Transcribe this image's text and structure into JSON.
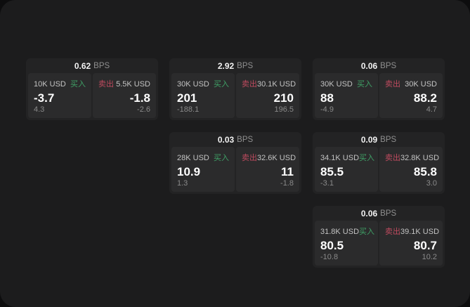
{
  "labels": {
    "bps_unit": "BPS",
    "buy": "买入",
    "sell": "卖出"
  },
  "colors": {
    "buy_green": "#3fa066",
    "sell_red": "#bf4b5f",
    "panel_bg": "#1c1c1d",
    "card_bg": "#232324",
    "tile_bg": "#2b2b2c"
  },
  "cards": [
    {
      "bps": "0.62",
      "grid": {
        "col": 1,
        "row": 1
      },
      "buy": {
        "amount": "10K USD",
        "price": "-3.7",
        "sub": "4.3"
      },
      "sell": {
        "amount": "5.5K USD",
        "price": "-1.8",
        "sub": "-2.6"
      }
    },
    {
      "bps": "2.92",
      "grid": {
        "col": 2,
        "row": 1
      },
      "buy": {
        "amount": "30K USD",
        "price": "201",
        "sub": "-188.1"
      },
      "sell": {
        "amount": "30.1K USD",
        "price": "210",
        "sub": "196.5"
      }
    },
    {
      "bps": "0.06",
      "grid": {
        "col": 3,
        "row": 1
      },
      "buy": {
        "amount": "30K USD",
        "price": "88",
        "sub": "-4.9"
      },
      "sell": {
        "amount": "30K USD",
        "price": "88.2",
        "sub": "4.7"
      }
    },
    {
      "bps": "0.03",
      "grid": {
        "col": 2,
        "row": 2
      },
      "buy": {
        "amount": "28K USD",
        "price": "10.9",
        "sub": "1.3"
      },
      "sell": {
        "amount": "32.6K USD",
        "price": "11",
        "sub": "-1.8"
      }
    },
    {
      "bps": "0.09",
      "grid": {
        "col": 3,
        "row": 2
      },
      "buy": {
        "amount": "34.1K USD",
        "price": "85.5",
        "sub": "-3.1"
      },
      "sell": {
        "amount": "32.8K USD",
        "price": "85.8",
        "sub": "3.0"
      }
    },
    {
      "bps": "0.06",
      "grid": {
        "col": 3,
        "row": 3
      },
      "buy": {
        "amount": "31.8K USD",
        "price": "80.5",
        "sub": "-10.8"
      },
      "sell": {
        "amount": "39.1K USD",
        "price": "80.7",
        "sub": "10.2"
      }
    }
  ]
}
